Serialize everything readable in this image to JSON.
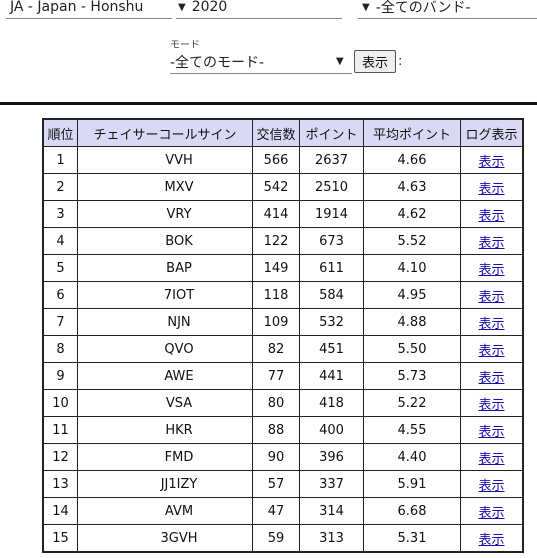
{
  "filters": {
    "region": "JA - Japan - Honshu",
    "year": "2020",
    "band": "-全てのバンド-",
    "mode_label": "モード",
    "mode": "-全てのモード-",
    "show_button": "表示",
    "colon": ":"
  },
  "table": {
    "headers": [
      "順位",
      "チェイサーコールサイン",
      "交信数",
      "ポイント",
      "平均ポイント",
      "ログ表示"
    ],
    "rows": [
      {
        "rank": "1",
        "call": "VVH",
        "qso": "566",
        "points": "2637",
        "avg": "4.66",
        "log": "表示"
      },
      {
        "rank": "2",
        "call": "MXV",
        "qso": "542",
        "points": "2510",
        "avg": "4.63",
        "log": "表示"
      },
      {
        "rank": "3",
        "call": "VRY",
        "qso": "414",
        "points": "1914",
        "avg": "4.62",
        "log": "表示"
      },
      {
        "rank": "4",
        "call": "BOK",
        "qso": "122",
        "points": "673",
        "avg": "5.52",
        "log": "表示"
      },
      {
        "rank": "5",
        "call": "BAP",
        "qso": "149",
        "points": "611",
        "avg": "4.10",
        "log": "表示"
      },
      {
        "rank": "6",
        "call": "7IOT",
        "qso": "118",
        "points": "584",
        "avg": "4.95",
        "log": "表示"
      },
      {
        "rank": "7",
        "call": "NJN",
        "qso": "109",
        "points": "532",
        "avg": "4.88",
        "log": "表示"
      },
      {
        "rank": "8",
        "call": "QVO",
        "qso": "82",
        "points": "451",
        "avg": "5.50",
        "log": "表示"
      },
      {
        "rank": "9",
        "call": "AWE",
        "qso": "77",
        "points": "441",
        "avg": "5.73",
        "log": "表示"
      },
      {
        "rank": "10",
        "call": "VSA",
        "qso": "80",
        "points": "418",
        "avg": "5.22",
        "log": "表示"
      },
      {
        "rank": "11",
        "call": "HKR",
        "qso": "88",
        "points": "400",
        "avg": "4.55",
        "log": "表示"
      },
      {
        "rank": "12",
        "call": "FMD",
        "qso": "90",
        "points": "396",
        "avg": "4.40",
        "log": "表示"
      },
      {
        "rank": "13",
        "call": "JJ1IZY",
        "qso": "57",
        "points": "337",
        "avg": "5.91",
        "log": "表示"
      },
      {
        "rank": "14",
        "call": "AVM",
        "qso": "47",
        "points": "314",
        "avg": "6.68",
        "log": "表示"
      },
      {
        "rank": "15",
        "call": "3GVH",
        "qso": "59",
        "points": "313",
        "avg": "5.31",
        "log": "表示"
      }
    ]
  }
}
